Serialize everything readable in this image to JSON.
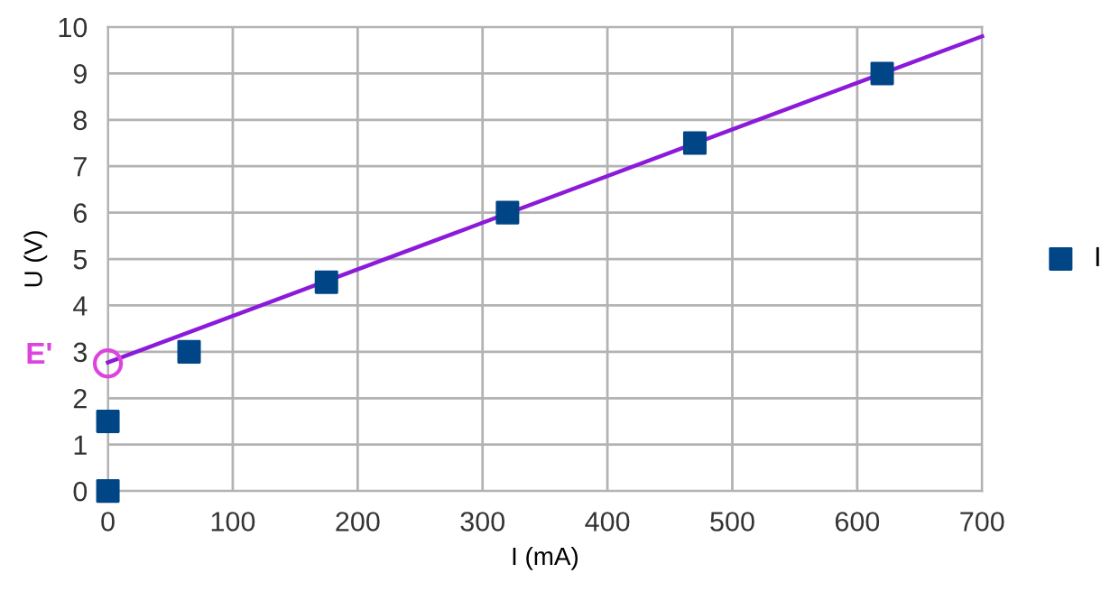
{
  "chart_data": {
    "type": "scatter",
    "xlabel": "I (mA)",
    "ylabel": "U (V)",
    "xlim": [
      0,
      700
    ],
    "ylim": [
      0,
      10
    ],
    "xticks": [
      0,
      100,
      200,
      300,
      400,
      500,
      600,
      700
    ],
    "yticks": [
      0,
      1,
      2,
      3,
      4,
      5,
      6,
      7,
      8,
      9,
      10
    ],
    "grid": true,
    "legend": "right",
    "marker": "square",
    "series": [
      {
        "name": "I",
        "color": "#004586",
        "x": [
          0,
          0,
          65,
          175,
          320,
          470,
          620
        ],
        "values": [
          0,
          1.5,
          3,
          4.5,
          6,
          7.5,
          9
        ]
      },
      {
        "type": "line",
        "color": "#8b1adb",
        "marker": "none",
        "x": [
          0,
          700
        ],
        "values": [
          2.77,
          9.8
        ]
      },
      {
        "color": "#dd44dd",
        "marker": "circle",
        "x": [
          0
        ],
        "values": [
          2.75
        ]
      }
    ],
    "annotations": [
      {
        "text": "E'",
        "x": 0,
        "y": 2.75
      }
    ]
  }
}
